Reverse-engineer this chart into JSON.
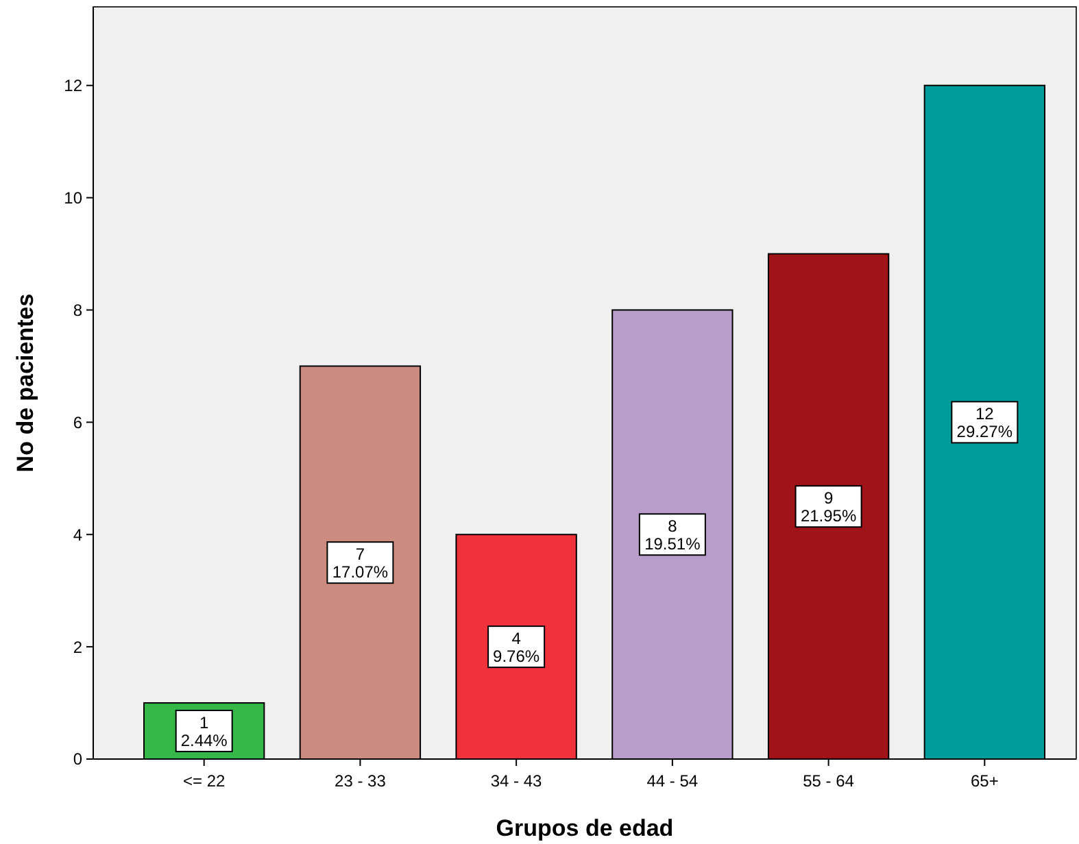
{
  "chart_data": {
    "type": "bar",
    "xlabel": "Grupos de edad",
    "ylabel": "No de pacientes",
    "categories": [
      "<= 22",
      "23 - 33",
      "34 - 43",
      "44 - 54",
      "55 - 64",
      "65+"
    ],
    "values": [
      1,
      7,
      4,
      8,
      9,
      12
    ],
    "colors": [
      "#35b847",
      "#cc8b7f",
      "#f0323a",
      "#b89dca",
      "#a01419",
      "#009b9b"
    ],
    "value_labels": [
      "1\n2.44%",
      "7\n17.07%",
      "4\n9.76%",
      "8\n19.51%",
      "9\n21.95%",
      "12\n29.27%"
    ],
    "ylim": [
      0,
      13.4
    ],
    "yticks": [
      0,
      2,
      4,
      6,
      8,
      10,
      12
    ],
    "grid": false
  }
}
